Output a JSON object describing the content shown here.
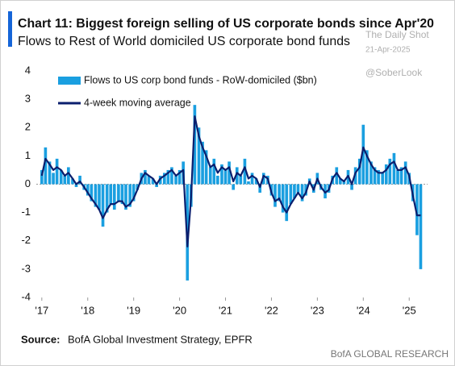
{
  "chart_data": {
    "type": "bar_line",
    "title": "Chart 11: Biggest foreign selling of US corporate bonds since Apr'20",
    "subtitle": "Flows to Rest of World domiciled US corporate bond funds",
    "watermark": [
      "The Daily Shot",
      "21-Apr-2025",
      "@SoberLook"
    ],
    "source_label": "Source:",
    "source": "BofA Global Investment Strategy, EPFR",
    "footer": "BofA GLOBAL RESEARCH",
    "x": [
      2017.0,
      2017.08,
      2017.17,
      2017.25,
      2017.33,
      2017.42,
      2017.5,
      2017.58,
      2017.67,
      2017.75,
      2017.83,
      2017.92,
      2018.0,
      2018.08,
      2018.17,
      2018.25,
      2018.33,
      2018.42,
      2018.5,
      2018.58,
      2018.67,
      2018.75,
      2018.83,
      2018.92,
      2019.0,
      2019.08,
      2019.17,
      2019.25,
      2019.33,
      2019.42,
      2019.5,
      2019.58,
      2019.67,
      2019.75,
      2019.83,
      2019.92,
      2020.0,
      2020.08,
      2020.17,
      2020.25,
      2020.33,
      2020.42,
      2020.5,
      2020.58,
      2020.67,
      2020.75,
      2020.83,
      2020.92,
      2021.0,
      2021.08,
      2021.17,
      2021.25,
      2021.33,
      2021.42,
      2021.5,
      2021.58,
      2021.67,
      2021.75,
      2021.83,
      2021.92,
      2022.0,
      2022.08,
      2022.17,
      2022.25,
      2022.33,
      2022.42,
      2022.5,
      2022.58,
      2022.67,
      2022.75,
      2022.83,
      2022.92,
      2023.0,
      2023.08,
      2023.17,
      2023.25,
      2023.33,
      2023.42,
      2023.5,
      2023.58,
      2023.67,
      2023.75,
      2023.83,
      2023.92,
      2024.0,
      2024.08,
      2024.17,
      2024.25,
      2024.33,
      2024.42,
      2024.5,
      2024.58,
      2024.67,
      2024.75,
      2024.83,
      2024.92,
      2025.0,
      2025.08,
      2025.17,
      2025.25
    ],
    "series": [
      {
        "name": "Flows to US corp bond funds - RoW-domiciled ($bn)",
        "kind": "bar",
        "color": "#1a9fe0",
        "values": [
          0.5,
          1.3,
          0.8,
          0.4,
          0.9,
          0.5,
          0.3,
          0.6,
          0.2,
          -0.1,
          0.3,
          -0.2,
          -0.4,
          -0.6,
          -0.8,
          -0.9,
          -1.5,
          -1.0,
          -0.7,
          -0.9,
          -0.6,
          -0.7,
          -0.9,
          -0.8,
          -0.6,
          -0.2,
          0.4,
          0.5,
          0.3,
          0.2,
          -0.1,
          0.3,
          0.4,
          0.5,
          0.6,
          0.3,
          0.5,
          0.8,
          -3.4,
          -0.8,
          2.8,
          2.0,
          1.5,
          1.2,
          0.6,
          0.9,
          0.3,
          0.7,
          0.5,
          0.8,
          -0.2,
          0.6,
          0.3,
          0.9,
          0.1,
          0.4,
          0.2,
          -0.3,
          0.4,
          0.3,
          -0.4,
          -0.8,
          -0.6,
          -1.0,
          -1.3,
          -0.7,
          -0.5,
          -0.3,
          -0.6,
          -0.4,
          0.2,
          -0.3,
          0.4,
          -0.2,
          -0.5,
          -0.3,
          0.3,
          0.6,
          0.2,
          0.1,
          0.5,
          -0.2,
          0.6,
          0.9,
          2.1,
          1.2,
          0.8,
          0.6,
          0.5,
          0.4,
          0.7,
          0.9,
          1.1,
          0.5,
          0.6,
          0.8,
          0.4,
          -0.6,
          -1.8,
          -3.0
        ]
      },
      {
        "name": "4-week moving average",
        "kind": "line",
        "color": "#0b1f6e",
        "values": [
          0.3,
          0.9,
          0.7,
          0.5,
          0.6,
          0.5,
          0.3,
          0.4,
          0.2,
          0.0,
          0.1,
          -0.1,
          -0.3,
          -0.5,
          -0.7,
          -0.9,
          -1.2,
          -0.9,
          -0.7,
          -0.7,
          -0.6,
          -0.6,
          -0.8,
          -0.7,
          -0.5,
          -0.2,
          0.2,
          0.4,
          0.3,
          0.2,
          0.0,
          0.2,
          0.3,
          0.4,
          0.5,
          0.3,
          0.4,
          0.5,
          -2.2,
          -0.5,
          2.4,
          1.7,
          1.3,
          1.0,
          0.6,
          0.7,
          0.4,
          0.6,
          0.5,
          0.6,
          0.1,
          0.4,
          0.3,
          0.6,
          0.2,
          0.3,
          0.2,
          -0.1,
          0.3,
          0.2,
          -0.3,
          -0.6,
          -0.5,
          -0.8,
          -1.0,
          -0.7,
          -0.5,
          -0.3,
          -0.5,
          -0.3,
          0.1,
          -0.2,
          0.2,
          -0.1,
          -0.3,
          -0.2,
          0.2,
          0.4,
          0.2,
          0.1,
          0.3,
          0.0,
          0.4,
          0.6,
          1.3,
          1.0,
          0.7,
          0.5,
          0.4,
          0.4,
          0.5,
          0.7,
          0.8,
          0.5,
          0.5,
          0.6,
          0.3,
          -0.4,
          -1.1,
          -1.1
        ]
      }
    ],
    "xlim": [
      2016.88,
      2025.4
    ],
    "xticks": [
      {
        "value": 2017,
        "label": "'17"
      },
      {
        "value": 2018,
        "label": "'18"
      },
      {
        "value": 2019,
        "label": "'19"
      },
      {
        "value": 2020,
        "label": "'20"
      },
      {
        "value": 2021,
        "label": "'21"
      },
      {
        "value": 2022,
        "label": "'22"
      },
      {
        "value": 2023,
        "label": "'23"
      },
      {
        "value": 2024,
        "label": "'24"
      },
      {
        "value": 2025,
        "label": "'25"
      }
    ],
    "ylim": [
      -4,
      4
    ],
    "yticks": [
      -4,
      -3,
      -2,
      -1,
      0,
      1,
      2,
      3,
      4
    ],
    "legend": "top-left"
  }
}
